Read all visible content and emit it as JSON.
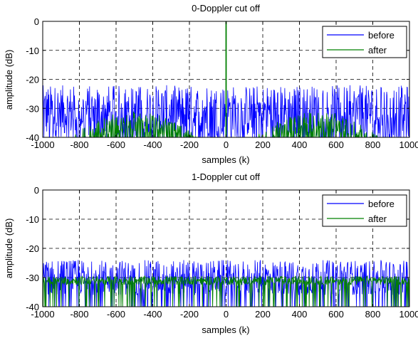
{
  "colors": {
    "before": "#0000ff",
    "after": "#008000",
    "grid": "#000000",
    "axes": "#000000"
  },
  "chart_data": [
    {
      "type": "line",
      "title": "0-Doppler cut off",
      "xlabel": "samples (k)",
      "ylabel": "amplitude (dB)",
      "xlim": [
        -1000,
        1000
      ],
      "ylim": [
        -40,
        0
      ],
      "xticks": [
        "-1000",
        "-800",
        "-600",
        "-400",
        "-200",
        "0",
        "200",
        "400",
        "600",
        "800",
        "1000"
      ],
      "yticks": [
        "0",
        "-10",
        "-20",
        "-30",
        "-40"
      ],
      "grid": true,
      "legend": {
        "position": "top-right",
        "entries": [
          "before",
          "after"
        ]
      },
      "series": [
        {
          "name": "before",
          "color": "#0000ff",
          "description": "noise floor",
          "mean": -31,
          "spread": 9,
          "min": -40,
          "max": -22
        },
        {
          "name": "after",
          "color": "#008000",
          "description": "two lobes peaking near x=-500 and x=500, spike at x=0",
          "lobes": [
            {
              "center": -500,
              "peak": -31,
              "half_width": 400
            },
            {
              "center": 500,
              "peak": -31,
              "half_width": 400
            }
          ],
          "spike": {
            "x": 0,
            "y": 0
          },
          "floor": -40
        }
      ]
    },
    {
      "type": "line",
      "title": "1-Doppler cut off",
      "xlabel": "samples (k)",
      "ylabel": "amplitude (dB)",
      "xlim": [
        -1000,
        1000
      ],
      "ylim": [
        -40,
        0
      ],
      "xticks": [
        "-1000",
        "-800",
        "-600",
        "-400",
        "-200",
        "0",
        "200",
        "400",
        "600",
        "800",
        "1000"
      ],
      "yticks": [
        "0",
        "-10",
        "-20",
        "-30",
        "-40"
      ],
      "grid": true,
      "legend": {
        "position": "top-right",
        "entries": [
          "before",
          "after"
        ]
      },
      "series": [
        {
          "name": "before",
          "color": "#0000ff",
          "description": "noise floor",
          "mean": -30,
          "spread": 6,
          "min": -40,
          "max": -22
        },
        {
          "name": "after",
          "color": "#008000",
          "description": "flat floor near -31 dB",
          "mean": -31,
          "spread": 1.5,
          "min": -40,
          "max": -27
        }
      ]
    }
  ]
}
